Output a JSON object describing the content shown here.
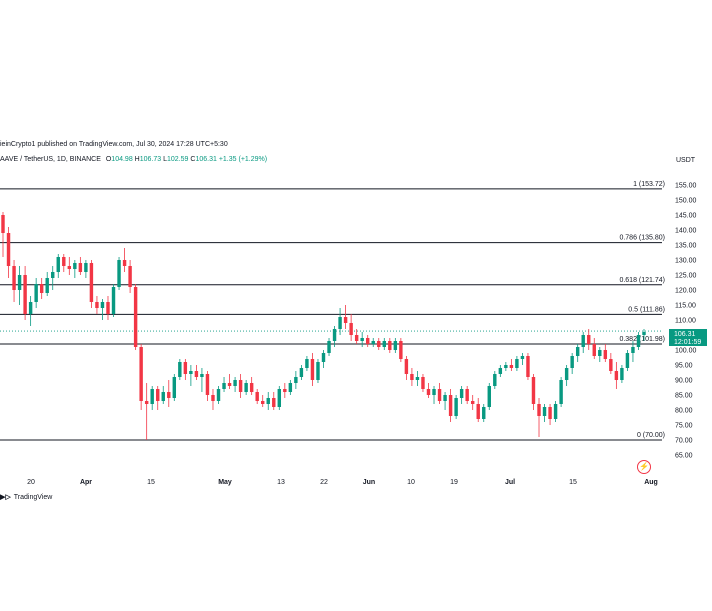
{
  "header": {
    "published": "ieinCrypto1 published on TradingView.com, Jul 30, 2024 17:28 UTC+5:30",
    "symbol": "AAVE / TetherUS, 1D, BINANCE",
    "o_label": "O",
    "o_value": "104.98",
    "h_label": "H",
    "h_value": "106.73",
    "l_label": "L",
    "l_value": "102.59",
    "c_label": "C",
    "c_value": "106.31",
    "change": "+1.35 (+1.29%)",
    "currency": "USDT"
  },
  "price_badge": {
    "price": "106.31",
    "countdown": "12:01:59",
    "color": "#089981"
  },
  "footer": {
    "brand": "TradingView"
  },
  "colors": {
    "up": "#089981",
    "down": "#f23645",
    "fib_line": "#131722",
    "price_line": "#089981"
  },
  "chart_data": {
    "type": "candlestick",
    "title": "AAVE / TetherUS, 1D, BINANCE",
    "y_axis": {
      "ticks": [
        "155.00",
        "150.00",
        "145.00",
        "140.00",
        "135.00",
        "130.00",
        "125.00",
        "120.00",
        "115.00",
        "110.00",
        "105.00",
        "100.00",
        "95.00",
        "90.00",
        "85.00",
        "80.00",
        "75.00",
        "70.00",
        "65.00"
      ],
      "range": [
        62,
        157
      ],
      "position": "right"
    },
    "x_axis": {
      "ticks": [
        {
          "label": "20",
          "bold": false
        },
        {
          "label": "Apr",
          "bold": true
        },
        {
          "label": "15",
          "bold": false
        },
        {
          "label": "May",
          "bold": true
        },
        {
          "label": "13",
          "bold": false
        },
        {
          "label": "22",
          "bold": false
        },
        {
          "label": "Jun",
          "bold": true
        },
        {
          "label": "10",
          "bold": false
        },
        {
          "label": "19",
          "bold": false
        },
        {
          "label": "Jul",
          "bold": true
        },
        {
          "label": "15",
          "bold": false
        },
        {
          "label": "Aug",
          "bold": true
        }
      ]
    },
    "fib_levels": [
      {
        "ratio": "1",
        "value": 153.72,
        "label": "1 (153.72)"
      },
      {
        "ratio": "0.786",
        "value": 135.8,
        "label": "0.786 (135.80)"
      },
      {
        "ratio": "0.618",
        "value": 121.74,
        "label": "0.618 (121.74)"
      },
      {
        "ratio": "0.5",
        "value": 111.86,
        "label": "0.5 (111.86)"
      },
      {
        "ratio": "0.382",
        "value": 101.98,
        "label": "0.382 (101.98)"
      },
      {
        "ratio": "0",
        "value": 70.0,
        "label": "0 (70.00)"
      }
    ],
    "last_price": 106.31,
    "candles": [
      {
        "o": 145,
        "h": 146,
        "l": 131,
        "c": 139
      },
      {
        "o": 139,
        "h": 141,
        "l": 124,
        "c": 128
      },
      {
        "o": 128,
        "h": 130,
        "l": 116,
        "c": 120
      },
      {
        "o": 120,
        "h": 128,
        "l": 115,
        "c": 125
      },
      {
        "o": 125,
        "h": 128,
        "l": 110,
        "c": 112
      },
      {
        "o": 112,
        "h": 118,
        "l": 108,
        "c": 116
      },
      {
        "o": 116,
        "h": 124,
        "l": 114,
        "c": 122
      },
      {
        "o": 122,
        "h": 124,
        "l": 117,
        "c": 119
      },
      {
        "o": 119,
        "h": 126,
        "l": 118,
        "c": 124
      },
      {
        "o": 124,
        "h": 128,
        "l": 120,
        "c": 126
      },
      {
        "o": 126,
        "h": 132,
        "l": 124,
        "c": 131
      },
      {
        "o": 131,
        "h": 132,
        "l": 126,
        "c": 128
      },
      {
        "o": 128,
        "h": 131,
        "l": 125,
        "c": 127
      },
      {
        "o": 127,
        "h": 130,
        "l": 124,
        "c": 129
      },
      {
        "o": 129,
        "h": 131,
        "l": 125,
        "c": 126
      },
      {
        "o": 126,
        "h": 130,
        "l": 124,
        "c": 129
      },
      {
        "o": 129,
        "h": 130,
        "l": 114,
        "c": 116
      },
      {
        "o": 116,
        "h": 118,
        "l": 112,
        "c": 114
      },
      {
        "o": 114,
        "h": 117,
        "l": 110,
        "c": 116
      },
      {
        "o": 116,
        "h": 118,
        "l": 110,
        "c": 112
      },
      {
        "o": 112,
        "h": 122,
        "l": 111,
        "c": 121
      },
      {
        "o": 121,
        "h": 131,
        "l": 120,
        "c": 130
      },
      {
        "o": 130,
        "h": 134,
        "l": 126,
        "c": 128
      },
      {
        "o": 128,
        "h": 130,
        "l": 119,
        "c": 121
      },
      {
        "o": 121,
        "h": 122,
        "l": 100,
        "c": 101
      },
      {
        "o": 101,
        "h": 102,
        "l": 80,
        "c": 83
      },
      {
        "o": 83,
        "h": 89,
        "l": 70,
        "c": 82
      },
      {
        "o": 82,
        "h": 88,
        "l": 80,
        "c": 87
      },
      {
        "o": 87,
        "h": 88,
        "l": 80,
        "c": 83
      },
      {
        "o": 83,
        "h": 88,
        "l": 82,
        "c": 86
      },
      {
        "o": 86,
        "h": 90,
        "l": 81,
        "c": 84
      },
      {
        "o": 84,
        "h": 92,
        "l": 83,
        "c": 91
      },
      {
        "o": 91,
        "h": 97,
        "l": 90,
        "c": 96
      },
      {
        "o": 96,
        "h": 97,
        "l": 90,
        "c": 92
      },
      {
        "o": 92,
        "h": 95,
        "l": 88,
        "c": 93
      },
      {
        "o": 93,
        "h": 95,
        "l": 90,
        "c": 91
      },
      {
        "o": 91,
        "h": 94,
        "l": 86,
        "c": 92
      },
      {
        "o": 92,
        "h": 93,
        "l": 83,
        "c": 85
      },
      {
        "o": 85,
        "h": 87,
        "l": 80,
        "c": 83
      },
      {
        "o": 83,
        "h": 88,
        "l": 82,
        "c": 87
      },
      {
        "o": 87,
        "h": 91,
        "l": 86,
        "c": 89
      },
      {
        "o": 89,
        "h": 92,
        "l": 87,
        "c": 88
      },
      {
        "o": 88,
        "h": 91,
        "l": 86,
        "c": 90
      },
      {
        "o": 90,
        "h": 92,
        "l": 84,
        "c": 86
      },
      {
        "o": 86,
        "h": 90,
        "l": 85,
        "c": 89
      },
      {
        "o": 89,
        "h": 91,
        "l": 85,
        "c": 86
      },
      {
        "o": 86,
        "h": 87,
        "l": 82,
        "c": 83
      },
      {
        "o": 83,
        "h": 85,
        "l": 81,
        "c": 82
      },
      {
        "o": 82,
        "h": 86,
        "l": 80,
        "c": 84
      },
      {
        "o": 84,
        "h": 86,
        "l": 80,
        "c": 81
      },
      {
        "o": 81,
        "h": 88,
        "l": 80,
        "c": 87
      },
      {
        "o": 87,
        "h": 89,
        "l": 84,
        "c": 86
      },
      {
        "o": 86,
        "h": 90,
        "l": 85,
        "c": 89
      },
      {
        "o": 89,
        "h": 93,
        "l": 87,
        "c": 91
      },
      {
        "o": 91,
        "h": 95,
        "l": 90,
        "c": 94
      },
      {
        "o": 94,
        "h": 98,
        "l": 93,
        "c": 97
      },
      {
        "o": 97,
        "h": 99,
        "l": 88,
        "c": 90
      },
      {
        "o": 90,
        "h": 97,
        "l": 89,
        "c": 96
      },
      {
        "o": 96,
        "h": 100,
        "l": 94,
        "c": 99
      },
      {
        "o": 99,
        "h": 104,
        "l": 98,
        "c": 103
      },
      {
        "o": 103,
        "h": 108,
        "l": 101,
        "c": 107
      },
      {
        "o": 107,
        "h": 114,
        "l": 105,
        "c": 111
      },
      {
        "o": 111,
        "h": 115,
        "l": 107,
        "c": 109
      },
      {
        "o": 109,
        "h": 112,
        "l": 103,
        "c": 105
      },
      {
        "o": 105,
        "h": 107,
        "l": 102,
        "c": 103
      },
      {
        "o": 103,
        "h": 106,
        "l": 101,
        "c": 104
      },
      {
        "o": 104,
        "h": 105,
        "l": 101,
        "c": 102
      },
      {
        "o": 102,
        "h": 104,
        "l": 101,
        "c": 103
      },
      {
        "o": 103,
        "h": 104,
        "l": 100,
        "c": 101
      },
      {
        "o": 101,
        "h": 104,
        "l": 100,
        "c": 103
      },
      {
        "o": 103,
        "h": 104,
        "l": 99,
        "c": 100
      },
      {
        "o": 100,
        "h": 104,
        "l": 99,
        "c": 103
      },
      {
        "o": 103,
        "h": 104,
        "l": 96,
        "c": 97
      },
      {
        "o": 97,
        "h": 98,
        "l": 90,
        "c": 92
      },
      {
        "o": 92,
        "h": 94,
        "l": 88,
        "c": 90
      },
      {
        "o": 90,
        "h": 93,
        "l": 88,
        "c": 91
      },
      {
        "o": 91,
        "h": 92,
        "l": 86,
        "c": 87
      },
      {
        "o": 87,
        "h": 89,
        "l": 84,
        "c": 85
      },
      {
        "o": 85,
        "h": 88,
        "l": 82,
        "c": 87
      },
      {
        "o": 87,
        "h": 89,
        "l": 82,
        "c": 83
      },
      {
        "o": 83,
        "h": 86,
        "l": 80,
        "c": 85
      },
      {
        "o": 85,
        "h": 87,
        "l": 76,
        "c": 78
      },
      {
        "o": 78,
        "h": 85,
        "l": 77,
        "c": 84
      },
      {
        "o": 84,
        "h": 88,
        "l": 82,
        "c": 87
      },
      {
        "o": 87,
        "h": 88,
        "l": 82,
        "c": 83
      },
      {
        "o": 83,
        "h": 85,
        "l": 80,
        "c": 82
      },
      {
        "o": 82,
        "h": 84,
        "l": 76,
        "c": 77
      },
      {
        "o": 77,
        "h": 82,
        "l": 76,
        "c": 81
      },
      {
        "o": 81,
        "h": 89,
        "l": 80,
        "c": 88
      },
      {
        "o": 88,
        "h": 93,
        "l": 87,
        "c": 92
      },
      {
        "o": 92,
        "h": 95,
        "l": 91,
        "c": 94
      },
      {
        "o": 94,
        "h": 96,
        "l": 93,
        "c": 95
      },
      {
        "o": 95,
        "h": 97,
        "l": 93,
        "c": 94
      },
      {
        "o": 94,
        "h": 98,
        "l": 93,
        "c": 97
      },
      {
        "o": 97,
        "h": 99,
        "l": 95,
        "c": 98
      },
      {
        "o": 98,
        "h": 99,
        "l": 90,
        "c": 91
      },
      {
        "o": 91,
        "h": 92,
        "l": 80,
        "c": 82
      },
      {
        "o": 82,
        "h": 84,
        "l": 71,
        "c": 78
      },
      {
        "o": 78,
        "h": 82,
        "l": 76,
        "c": 81
      },
      {
        "o": 81,
        "h": 82,
        "l": 75,
        "c": 77
      },
      {
        "o": 77,
        "h": 83,
        "l": 76,
        "c": 82
      },
      {
        "o": 82,
        "h": 91,
        "l": 81,
        "c": 90
      },
      {
        "o": 90,
        "h": 95,
        "l": 88,
        "c": 94
      },
      {
        "o": 94,
        "h": 99,
        "l": 92,
        "c": 98
      },
      {
        "o": 98,
        "h": 102,
        "l": 96,
        "c": 101
      },
      {
        "o": 101,
        "h": 106,
        "l": 99,
        "c": 105
      },
      {
        "o": 105,
        "h": 107,
        "l": 100,
        "c": 102
      },
      {
        "o": 102,
        "h": 104,
        "l": 97,
        "c": 98
      },
      {
        "o": 98,
        "h": 101,
        "l": 96,
        "c": 100
      },
      {
        "o": 100,
        "h": 102,
        "l": 96,
        "c": 97
      },
      {
        "o": 97,
        "h": 99,
        "l": 92,
        "c": 93
      },
      {
        "o": 93,
        "h": 96,
        "l": 87,
        "c": 90
      },
      {
        "o": 90,
        "h": 95,
        "l": 89,
        "c": 94
      },
      {
        "o": 94,
        "h": 100,
        "l": 93,
        "c": 99
      },
      {
        "o": 99,
        "h": 103,
        "l": 96,
        "c": 101
      },
      {
        "o": 101,
        "h": 106,
        "l": 100,
        "c": 105
      },
      {
        "o": 105,
        "h": 107,
        "l": 103,
        "c": 106
      }
    ]
  }
}
